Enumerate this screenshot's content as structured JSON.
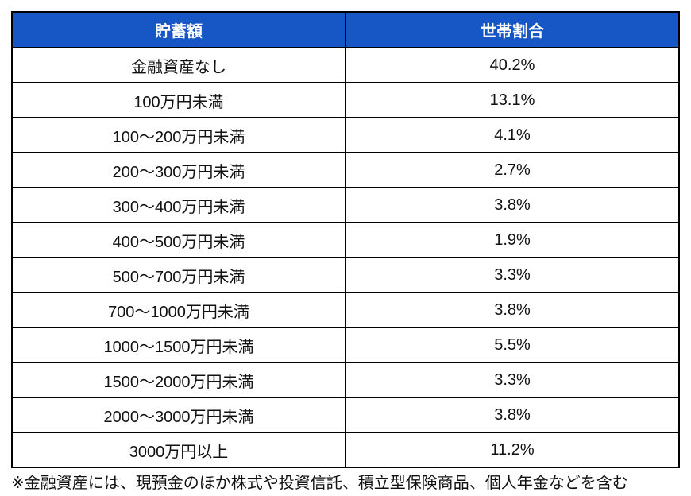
{
  "colors": {
    "page_bg": "#ffffff",
    "header_bg": "#1656C5",
    "header_text": "#ffffff",
    "border": "#000000",
    "cell_text": "#111111"
  },
  "table": {
    "columns": [
      "貯蓄額",
      "世帯割合"
    ],
    "rows": [
      {
        "range": "金融資産なし",
        "share": "40.2%"
      },
      {
        "range": "100万円未満",
        "share": "13.1%"
      },
      {
        "range": "100〜200万円未満",
        "share": "4.1%"
      },
      {
        "range": "200〜300万円未満",
        "share": "2.7%"
      },
      {
        "range": "300〜400万円未満",
        "share": "3.8%"
      },
      {
        "range": "400〜500万円未満",
        "share": "1.9%"
      },
      {
        "range": "500〜700万円未満",
        "share": "3.3%"
      },
      {
        "range": "700〜1000万円未満",
        "share": "3.8%"
      },
      {
        "range": "1000〜1500万円未満",
        "share": "5.5%"
      },
      {
        "range": "1500〜2000万円未満",
        "share": "3.3%"
      },
      {
        "range": "2000〜3000万円未満",
        "share": "3.8%"
      },
      {
        "range": "3000万円以上",
        "share": "11.2%"
      }
    ]
  },
  "footnote": "※金融資産には、現預金のほか株式や投資信託、積立型保険商品、個人年金などを含む",
  "chart_data": {
    "type": "table",
    "columns": [
      "貯蓄額",
      "世帯割合"
    ],
    "rows": [
      [
        "金融資産なし",
        "40.2%"
      ],
      [
        "100万円未満",
        "13.1%"
      ],
      [
        "100〜200万円未満",
        "4.1%"
      ],
      [
        "200〜300万円未満",
        "2.7%"
      ],
      [
        "300〜400万円未満",
        "3.8%"
      ],
      [
        "400〜500万円未満",
        "1.9%"
      ],
      [
        "500〜700万円未満",
        "3.3%"
      ],
      [
        "700〜1000万円未満",
        "3.8%"
      ],
      [
        "1000〜1500万円未満",
        "5.5%"
      ],
      [
        "1500〜2000万円未満",
        "3.3%"
      ],
      [
        "2000〜3000万円未満",
        "3.8%"
      ],
      [
        "3000万円以上",
        "11.2%"
      ]
    ],
    "values_numeric_percent": [
      40.2,
      13.1,
      4.1,
      2.7,
      3.8,
      1.9,
      3.3,
      3.8,
      5.5,
      3.3,
      3.8,
      11.2
    ],
    "note": "※金融資産には、現預金のほか株式や投資信託、積立型保険商品、個人年金などを含む"
  }
}
